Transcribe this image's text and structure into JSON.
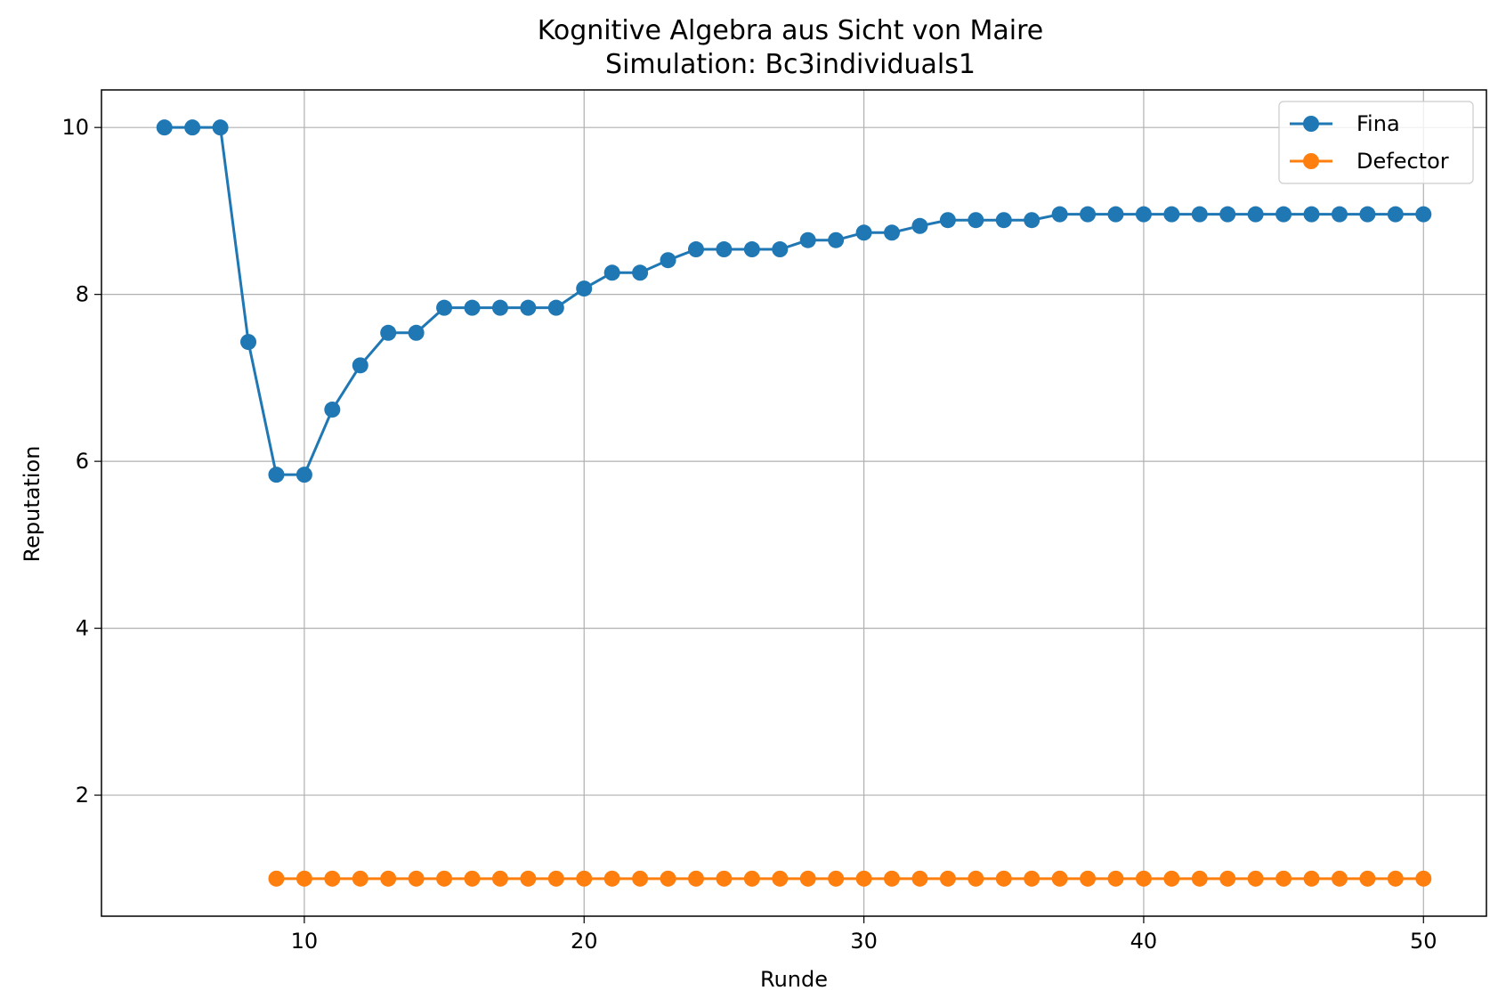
{
  "chart_data": {
    "type": "line",
    "title": "Kognitive Algebra aus Sicht von Maire",
    "subtitle": "Simulation: Bc3individuals1",
    "xlabel": "Runde",
    "ylabel": "Reputation",
    "xlim": [
      2.75,
      52.25
    ],
    "ylim": [
      0.55,
      10.45
    ],
    "xticks": [
      10,
      20,
      30,
      40,
      50
    ],
    "yticks": [
      2,
      4,
      6,
      8,
      10
    ],
    "grid": true,
    "legend_position": "upper right",
    "series": [
      {
        "name": "Fina",
        "color": "#1f77b4",
        "marker": "circle",
        "x": [
          5,
          6,
          7,
          8,
          9,
          10,
          11,
          12,
          13,
          14,
          15,
          16,
          17,
          18,
          19,
          20,
          21,
          22,
          23,
          24,
          25,
          26,
          27,
          28,
          29,
          30,
          31,
          32,
          33,
          34,
          35,
          36,
          37,
          38,
          39,
          40,
          41,
          42,
          43,
          44,
          45,
          46,
          47,
          48,
          49,
          50
        ],
        "y": [
          10,
          10,
          10,
          7.43,
          5.84,
          5.84,
          6.62,
          7.15,
          7.54,
          7.54,
          7.84,
          7.84,
          7.84,
          7.84,
          7.84,
          8.07,
          8.26,
          8.26,
          8.41,
          8.54,
          8.54,
          8.54,
          8.54,
          8.65,
          8.65,
          8.74,
          8.74,
          8.82,
          8.89,
          8.89,
          8.89,
          8.89,
          8.96,
          8.96,
          8.96,
          8.96,
          8.96,
          8.96,
          8.96,
          8.96,
          8.96,
          8.96,
          8.96,
          8.96,
          8.96,
          8.96
        ]
      },
      {
        "name": "Defector",
        "color": "#ff7f0e",
        "marker": "circle",
        "x": [
          9,
          10,
          11,
          12,
          13,
          14,
          15,
          16,
          17,
          18,
          19,
          20,
          21,
          22,
          23,
          24,
          25,
          26,
          27,
          28,
          29,
          30,
          31,
          32,
          33,
          34,
          35,
          36,
          37,
          38,
          39,
          40,
          41,
          42,
          43,
          44,
          45,
          46,
          47,
          48,
          49,
          50
        ],
        "y": [
          1,
          1,
          1,
          1,
          1,
          1,
          1,
          1,
          1,
          1,
          1,
          1,
          1,
          1,
          1,
          1,
          1,
          1,
          1,
          1,
          1,
          1,
          1,
          1,
          1,
          1,
          1,
          1,
          1,
          1,
          1,
          1,
          1,
          1,
          1,
          1,
          1,
          1,
          1,
          1,
          1,
          1
        ]
      }
    ]
  }
}
